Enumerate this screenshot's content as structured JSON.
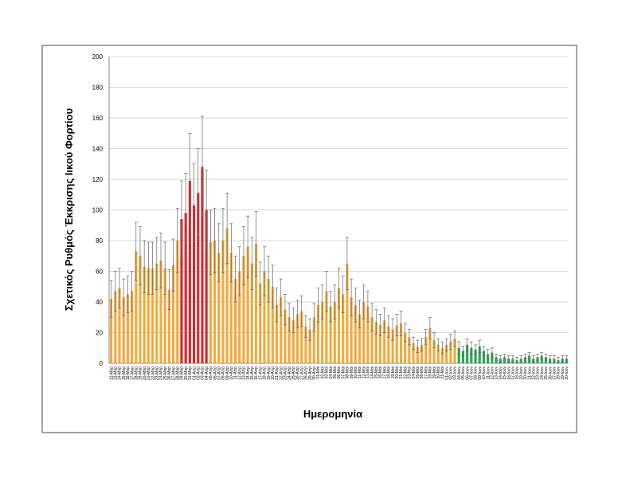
{
  "chart_data": {
    "type": "bar",
    "y_label": "Σχετικός Ρυθμός Έκκρισης Ιικού Φορτίου",
    "x_label": "Ημερομηνία",
    "categories": [
      "12-Μαρ",
      "13-Μαρ",
      "14-Μαρ",
      "15-Μαρ",
      "16-Μαρ",
      "17-Μαρ",
      "18-Μαρ",
      "19-Μαρ",
      "20-Μαρ",
      "21-Μαρ",
      "22-Μαρ",
      "23-Μαρ",
      "24-Μαρ",
      "25-Μαρ",
      "26-Μαρ",
      "27-Μαρ",
      "28-Μαρ",
      "29-Μαρ",
      "30-Μαρ",
      "31-Μαρ",
      "01-Απρ",
      "02-Απρ",
      "03-Απρ",
      "04-Απρ",
      "05-Απρ",
      "06-Απρ",
      "07-Απρ",
      "08-Απρ",
      "09-Απρ",
      "10-Απρ",
      "11-Απρ",
      "12-Απρ",
      "13-Απρ",
      "14-Απρ",
      "15-Απρ",
      "16-Απρ",
      "17-Απρ",
      "18-Απρ",
      "19-Απρ",
      "20-Απρ",
      "21-Απρ",
      "22-Απρ",
      "23-Απρ",
      "24-Απρ",
      "25-Απρ",
      "26-Απρ",
      "27-Απρ",
      "28-Απρ",
      "29-Απρ",
      "30-Απρ",
      "01-Μαϊ",
      "02-Μαϊ",
      "03-Μαϊ",
      "04-Μαϊ",
      "05-Μαϊ",
      "06-Μαϊ",
      "07-Μαϊ",
      "08-Μαϊ",
      "09-Μαϊ",
      "10-Μαϊ",
      "11-Μαϊ",
      "12-Μαϊ",
      "13-Μαϊ",
      "14-Μαϊ",
      "15-Μαϊ",
      "16-Μαϊ",
      "17-Μαϊ",
      "18-Μαϊ",
      "19-Μαϊ",
      "20-Μαϊ",
      "21-Μαϊ",
      "22-Μαϊ",
      "23-Μαϊ",
      "24-Μαϊ",
      "25-Μαϊ",
      "26-Μαϊ",
      "27-Μαϊ",
      "28-Μαϊ",
      "29-Μαϊ",
      "30-Μαϊ",
      "31-Μαϊ",
      "01-Ιουν",
      "02-Ιουν",
      "03-Ιουν",
      "04-Ιουν",
      "05-Ιουν",
      "06-Ιουν",
      "07-Ιουν",
      "08-Ιουν",
      "09-Ιουν",
      "10-Ιουν",
      "11-Ιουν",
      "12-Ιουν",
      "13-Ιουν",
      "14-Ιουν",
      "15-Ιουν",
      "16-Ιουν",
      "17-Ιουν",
      "18-Ιουν",
      "19-Ιουν",
      "20-Ιουν",
      "21-Ιουν",
      "22-Ιουν",
      "23-Ιουν",
      "24-Ιουν",
      "25-Ιουν",
      "26-Ιουν",
      "27-Ιουν",
      "28-Ιουν",
      "29-Ιουν",
      "30-Ιουν"
    ],
    "values": [
      42,
      47,
      49,
      43,
      45,
      47,
      73,
      70,
      63,
      62,
      62,
      65,
      67,
      62,
      48,
      64,
      80,
      94,
      98,
      119,
      103,
      111,
      128,
      100,
      79,
      80,
      72,
      80,
      88,
      72,
      55,
      60,
      70,
      76,
      65,
      78,
      52,
      60,
      55,
      50,
      38,
      43,
      35,
      30,
      28,
      32,
      34,
      24,
      22,
      30,
      38,
      40,
      47,
      37,
      40,
      49,
      45,
      65,
      43,
      38,
      32,
      40,
      37,
      30,
      27,
      25,
      28,
      24,
      22,
      25,
      26,
      20,
      17,
      13,
      11,
      12,
      17,
      23,
      15,
      12,
      10,
      12,
      14,
      16,
      10,
      8,
      12,
      10,
      9,
      11,
      8,
      6,
      7,
      4,
      3,
      4,
      3,
      3,
      2,
      3,
      4,
      5,
      3,
      4,
      5,
      4,
      3,
      3,
      2,
      3,
      3
    ],
    "errors": [
      12,
      13,
      13,
      12,
      12,
      13,
      19,
      19,
      17,
      17,
      17,
      17,
      18,
      17,
      13,
      17,
      21,
      25,
      26,
      31,
      27,
      29,
      33,
      26,
      21,
      21,
      19,
      21,
      23,
      19,
      15,
      16,
      19,
      20,
      17,
      21,
      14,
      16,
      15,
      14,
      11,
      12,
      10,
      9,
      8,
      9,
      10,
      7,
      7,
      9,
      11,
      11,
      13,
      10,
      11,
      13,
      12,
      17,
      12,
      11,
      9,
      11,
      10,
      9,
      8,
      7,
      8,
      7,
      7,
      7,
      8,
      6,
      5,
      4,
      4,
      4,
      5,
      7,
      5,
      4,
      4,
      4,
      5,
      5,
      4,
      3,
      4,
      4,
      3,
      4,
      3,
      3,
      3,
      2,
      2,
      2,
      2,
      2,
      2,
      2,
      2,
      2,
      2,
      2,
      2,
      2,
      2,
      2,
      2,
      2,
      2
    ],
    "colors": [
      "#f2a93b",
      "#f2a93b",
      "#f2a93b",
      "#f2a93b",
      "#f2a93b",
      "#f2a93b",
      "#f2a93b",
      "#f2a93b",
      "#f2a93b",
      "#f2a93b",
      "#f2a93b",
      "#f2a93b",
      "#f2a93b",
      "#f2a93b",
      "#f2a93b",
      "#f2a93b",
      "#f2a93b",
      "#d7262b",
      "#d7262b",
      "#d7262b",
      "#d7262b",
      "#d7262b",
      "#d7262b",
      "#d7262b",
      "#f2a93b",
      "#f2a93b",
      "#f2a93b",
      "#f2a93b",
      "#f2a93b",
      "#f2a93b",
      "#f2a93b",
      "#f2a93b",
      "#f2a93b",
      "#f2a93b",
      "#f2a93b",
      "#f2a93b",
      "#f2a93b",
      "#f2a93b",
      "#f2a93b",
      "#f2a93b",
      "#f2a93b",
      "#f2a93b",
      "#f2a93b",
      "#f2a93b",
      "#f2a93b",
      "#f2a93b",
      "#f2a93b",
      "#f2a93b",
      "#f2a93b",
      "#f2a93b",
      "#f2a93b",
      "#f2a93b",
      "#f2a93b",
      "#f2a93b",
      "#f2a93b",
      "#f2a93b",
      "#f2a93b",
      "#f2a93b",
      "#f2a93b",
      "#f2a93b",
      "#f2a93b",
      "#f2a93b",
      "#f2a93b",
      "#f2a93b",
      "#f2a93b",
      "#f2a93b",
      "#f2a93b",
      "#f2a93b",
      "#f2a93b",
      "#f2a93b",
      "#f2a93b",
      "#f2a93b",
      "#f2a93b",
      "#f2a93b",
      "#f2a93b",
      "#f2a93b",
      "#f2a93b",
      "#f2a93b",
      "#f2a93b",
      "#f2a93b",
      "#f2a93b",
      "#f2a93b",
      "#f2a93b",
      "#f2a93b",
      "#2aa55a",
      "#2aa55a",
      "#2aa55a",
      "#2aa55a",
      "#2aa55a",
      "#2aa55a",
      "#2aa55a",
      "#2aa55a",
      "#2aa55a",
      "#2aa55a",
      "#2aa55a",
      "#2aa55a",
      "#2aa55a",
      "#2aa55a",
      "#2aa55a",
      "#2aa55a",
      "#2aa55a",
      "#2aa55a",
      "#2aa55a",
      "#2aa55a",
      "#2aa55a",
      "#2aa55a",
      "#2aa55a",
      "#2aa55a",
      "#2aa55a",
      "#2aa55a",
      "#2aa55a"
    ],
    "ylim": [
      0,
      200
    ],
    "yticks": [
      0,
      20,
      40,
      60,
      80,
      100,
      120,
      140,
      160,
      180,
      200
    ],
    "grid": true
  }
}
